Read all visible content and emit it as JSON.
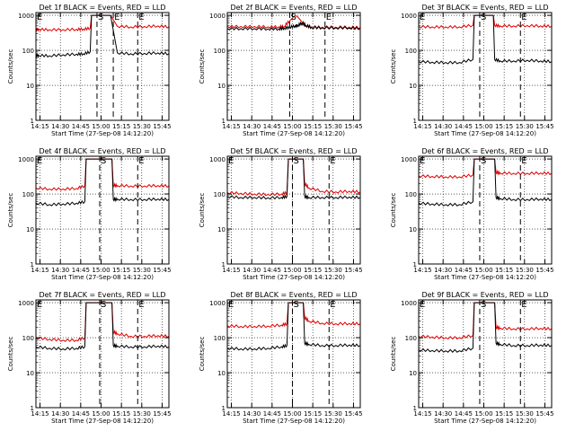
{
  "figure": {
    "y_tick_labels": [
      "1",
      "10",
      "100",
      "1000"
    ],
    "x_tick_labels": [
      "14:15",
      "14:30",
      "14:45",
      "15:00",
      "15:15",
      "15:30",
      "15:45"
    ],
    "xlabel": "Start Time (27-Sep-08 14:12:20)",
    "ylabel": "Counts/sec",
    "marker_labels": {
      "start": "S",
      "end": "E"
    }
  },
  "colors": {
    "events": "#000000",
    "lld": "#e00000",
    "axes": "#000000"
  },
  "chart_data": [
    {
      "type": "line",
      "title": "Det 1f BLACK = Events, RED = LLD",
      "x_unit": "minutes after 14:12:20",
      "xlim": [
        0,
        98
      ],
      "yscale": "log",
      "ylim": [
        1,
        1200
      ],
      "grid": "dotted",
      "x": [
        0,
        2,
        10,
        20,
        30,
        35,
        40,
        41,
        42,
        50,
        55,
        60,
        70,
        80,
        90,
        98
      ],
      "series": [
        {
          "name": "Events",
          "values": [
            72,
            72,
            70,
            75,
            78,
            80,
            90,
            1000,
            1000,
            1000,
            1000,
            85,
            80,
            82,
            85,
            80
          ]
        },
        {
          "name": "LLD",
          "values": [
            400,
            400,
            390,
            390,
            400,
            405,
            430,
            1000,
            1000,
            1000,
            1000,
            490,
            470,
            480,
            500,
            470
          ]
        }
      ],
      "markers": [
        {
          "x": 45,
          "label": "S"
        },
        {
          "x": 57,
          "label": "E"
        },
        {
          "x": 0,
          "label": "E"
        },
        {
          "x": 75,
          "label": "E"
        }
      ]
    },
    {
      "type": "line",
      "title": "Det 2f BLACK = Events, RED = LLD",
      "x_unit": "minutes after 14:12:20",
      "xlim": [
        0,
        98
      ],
      "yscale": "log",
      "ylim": [
        1,
        1200
      ],
      "grid": "dotted",
      "x": [
        0,
        10,
        20,
        30,
        38,
        42,
        46,
        50,
        52,
        55,
        58,
        62,
        70,
        80,
        90,
        98
      ],
      "series": [
        {
          "name": "Events",
          "values": [
            420,
            420,
            420,
            410,
            410,
            430,
            460,
            500,
            520,
            600,
            520,
            450,
            440,
            440,
            440,
            420
          ]
        },
        {
          "name": "LLD",
          "values": [
            480,
            480,
            480,
            470,
            470,
            480,
            700,
            1000,
            900,
            650,
            500,
            470,
            460,
            460,
            460,
            450
          ]
        }
      ],
      "markers": [
        {
          "x": 46,
          "label": "S"
        },
        {
          "x": 72,
          "label": "E"
        }
      ]
    },
    {
      "type": "line",
      "title": "Det 3f BLACK = Events, RED = LLD",
      "x_unit": "minutes after 14:12:20",
      "xlim": [
        0,
        98
      ],
      "yscale": "log",
      "ylim": [
        1,
        1200
      ],
      "grid": "dotted",
      "x": [
        0,
        10,
        20,
        30,
        40,
        41,
        42,
        50,
        55,
        56,
        60,
        70,
        80,
        90,
        98
      ],
      "series": [
        {
          "name": "Events",
          "values": [
            48,
            46,
            45,
            45,
            55,
            1000,
            1000,
            1000,
            1000,
            55,
            50,
            50,
            52,
            50,
            48
          ]
        },
        {
          "name": "LLD",
          "values": [
            480,
            470,
            470,
            470,
            520,
            1000,
            1000,
            1000,
            1000,
            520,
            500,
            500,
            510,
            500,
            490
          ]
        }
      ],
      "markers": [
        {
          "x": 45,
          "label": "S"
        },
        {
          "x": 0,
          "label": "E"
        },
        {
          "x": 75,
          "label": "E"
        }
      ]
    },
    {
      "type": "line",
      "title": "Det 4f BLACK = Events, RED = LLD",
      "x_unit": "minutes after 14:12:20",
      "xlim": [
        0,
        98
      ],
      "yscale": "log",
      "ylim": [
        1,
        1200
      ],
      "grid": "dotted",
      "x": [
        0,
        10,
        20,
        30,
        36,
        37,
        38,
        50,
        56,
        57,
        60,
        70,
        80,
        90,
        98
      ],
      "series": [
        {
          "name": "Events",
          "values": [
            55,
            50,
            52,
            55,
            60,
            1000,
            1000,
            1000,
            1000,
            70,
            72,
            70,
            70,
            72,
            70
          ]
        },
        {
          "name": "LLD",
          "values": [
            150,
            140,
            140,
            145,
            170,
            1000,
            1000,
            1000,
            1000,
            180,
            175,
            170,
            170,
            175,
            170
          ]
        }
      ],
      "markers": [
        {
          "x": 47,
          "label": "S"
        },
        {
          "x": 0,
          "label": "E"
        },
        {
          "x": 75,
          "label": "E"
        }
      ]
    },
    {
      "type": "line",
      "title": "Det 5f BLACK = Events, RED = LLD",
      "x_unit": "minutes after 14:12:20",
      "xlim": [
        0,
        98
      ],
      "yscale": "log",
      "ylim": [
        1,
        1200
      ],
      "grid": "dotted",
      "x": [
        0,
        10,
        20,
        30,
        40,
        44,
        45,
        50,
        56,
        57,
        60,
        70,
        80,
        90,
        98
      ],
      "series": [
        {
          "name": "Events",
          "values": [
            85,
            80,
            80,
            78,
            80,
            85,
            1000,
            1000,
            1000,
            85,
            80,
            80,
            80,
            82,
            80
          ]
        },
        {
          "name": "LLD",
          "values": [
            110,
            105,
            100,
            98,
            100,
            110,
            1000,
            1000,
            1000,
            200,
            150,
            120,
            115,
            120,
            115
          ]
        }
      ],
      "markers": [
        {
          "x": 48,
          "label": "S"
        },
        {
          "x": 0,
          "label": "E"
        },
        {
          "x": 75,
          "label": "E"
        }
      ]
    },
    {
      "type": "line",
      "title": "Det 6f BLACK = Events, RED = LLD",
      "x_unit": "minutes after 14:12:20",
      "xlim": [
        0,
        98
      ],
      "yscale": "log",
      "ylim": [
        1,
        1200
      ],
      "grid": "dotted",
      "x": [
        0,
        10,
        20,
        30,
        40,
        41,
        42,
        50,
        56,
        57,
        60,
        70,
        80,
        90,
        98
      ],
      "series": [
        {
          "name": "Events",
          "values": [
            55,
            52,
            50,
            50,
            60,
            1000,
            1000,
            1000,
            1000,
            80,
            75,
            70,
            70,
            72,
            70
          ]
        },
        {
          "name": "LLD",
          "values": [
            330,
            320,
            310,
            310,
            350,
            1000,
            1000,
            1000,
            1000,
            420,
            400,
            390,
            390,
            400,
            390
          ]
        }
      ],
      "markers": [
        {
          "x": 45,
          "label": "S"
        },
        {
          "x": 0,
          "label": "E"
        },
        {
          "x": 75,
          "label": "E"
        }
      ]
    },
    {
      "type": "line",
      "title": "Det 7f BLACK = Events, RED = LLD",
      "x_unit": "minutes after 14:12:20",
      "xlim": [
        0,
        98
      ],
      "yscale": "log",
      "ylim": [
        1,
        1200
      ],
      "grid": "dotted",
      "x": [
        0,
        10,
        20,
        30,
        36,
        37,
        38,
        50,
        56,
        57,
        60,
        70,
        80,
        90,
        98
      ],
      "series": [
        {
          "name": "Events",
          "values": [
            55,
            50,
            48,
            50,
            55,
            1000,
            1000,
            1000,
            1000,
            60,
            58,
            55,
            55,
            58,
            55
          ]
        },
        {
          "name": "LLD",
          "values": [
            100,
            90,
            85,
            85,
            100,
            1000,
            1000,
            1000,
            1000,
            150,
            130,
            110,
            110,
            115,
            110
          ]
        }
      ],
      "markers": [
        {
          "x": 47,
          "label": "S"
        },
        {
          "x": 0,
          "label": "E"
        },
        {
          "x": 75,
          "label": "E"
        }
      ]
    },
    {
      "type": "line",
      "title": "Det 8f BLACK = Events, RED = LLD",
      "x_unit": "minutes after 14:12:20",
      "xlim": [
        0,
        98
      ],
      "yscale": "log",
      "ylim": [
        1,
        1200
      ],
      "grid": "dotted",
      "x": [
        0,
        10,
        20,
        30,
        40,
        44,
        45,
        50,
        56,
        57,
        60,
        70,
        80,
        90,
        98
      ],
      "series": [
        {
          "name": "Events",
          "values": [
            50,
            48,
            48,
            50,
            55,
            60,
            1000,
            1000,
            1000,
            70,
            65,
            60,
            60,
            62,
            60
          ]
        },
        {
          "name": "LLD",
          "values": [
            220,
            210,
            210,
            215,
            230,
            250,
            1000,
            1000,
            1000,
            380,
            300,
            260,
            250,
            255,
            250
          ]
        }
      ],
      "markers": [
        {
          "x": 48,
          "label": "S"
        },
        {
          "x": 0,
          "label": "E"
        },
        {
          "x": 75,
          "label": "E"
        }
      ]
    },
    {
      "type": "line",
      "title": "Det 9f BLACK = Events, RED = LLD",
      "x_unit": "minutes after 14:12:20",
      "xlim": [
        0,
        98
      ],
      "yscale": "log",
      "ylim": [
        1,
        1200
      ],
      "grid": "dotted",
      "x": [
        0,
        10,
        20,
        30,
        40,
        41,
        42,
        50,
        56,
        57,
        60,
        70,
        80,
        90,
        98
      ],
      "series": [
        {
          "name": "Events",
          "values": [
            45,
            43,
            42,
            42,
            50,
            1000,
            1000,
            1000,
            1000,
            70,
            65,
            60,
            60,
            62,
            60
          ]
        },
        {
          "name": "LLD",
          "values": [
            110,
            105,
            100,
            100,
            115,
            1000,
            1000,
            1000,
            1000,
            200,
            190,
            180,
            180,
            185,
            180
          ]
        }
      ],
      "markers": [
        {
          "x": 45,
          "label": "S"
        },
        {
          "x": 0,
          "label": "E"
        },
        {
          "x": 75,
          "label": "E"
        }
      ]
    }
  ]
}
